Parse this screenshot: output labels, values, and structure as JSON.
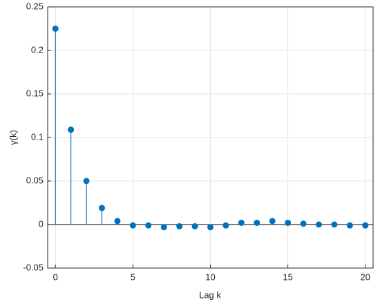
{
  "chart_data": {
    "type": "stem",
    "xlabel": "Lag k",
    "ylabel": "γ(k)",
    "x": [
      0,
      1,
      2,
      3,
      4,
      5,
      6,
      7,
      8,
      9,
      10,
      11,
      12,
      13,
      14,
      15,
      16,
      17,
      18,
      19,
      20
    ],
    "values": [
      0.225,
      0.109,
      0.05,
      0.019,
      0.004,
      -0.001,
      -0.001,
      -0.003,
      -0.002,
      -0.002,
      -0.003,
      -0.001,
      0.002,
      0.002,
      0.004,
      0.002,
      0.001,
      0,
      0,
      -0.001,
      -0.001
    ],
    "color": "#0072bd",
    "xlim": [
      -0.5,
      20.5
    ],
    "xticks": [
      0,
      5,
      10,
      15,
      20
    ],
    "ylim": [
      -0.05,
      0.25
    ],
    "yticks": [
      -0.05,
      0,
      0.05,
      0.1,
      0.15,
      0.2,
      0.25
    ],
    "grid": true
  }
}
